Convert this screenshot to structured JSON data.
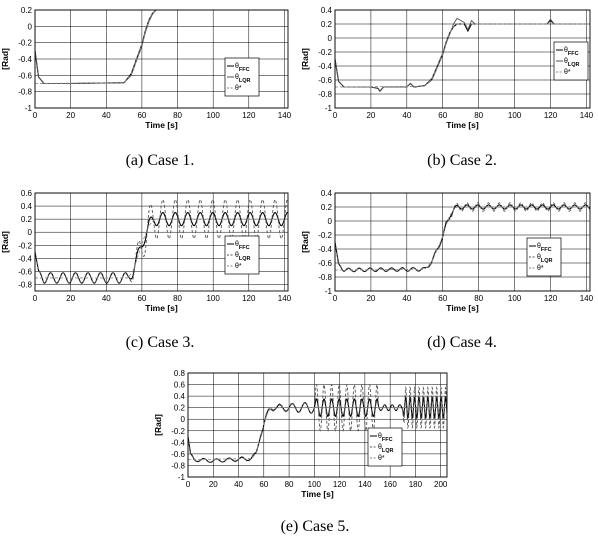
{
  "chart_data": [
    {
      "type": "line",
      "caption": "(a) Case 1.",
      "xlabel": "Time [s]",
      "ylabel": "[Rad]",
      "xlim": [
        0,
        142
      ],
      "ylim": [
        -1,
        0.2
      ],
      "xticks": [
        0,
        20,
        40,
        60,
        80,
        100,
        120,
        140
      ],
      "yticks": [
        -1,
        -0.8,
        -0.6,
        -0.4,
        -0.2,
        0,
        0.2
      ],
      "grid": true,
      "legend_position": "right",
      "legend": [
        "θ_FFC",
        "θ_LQR",
        "θ*"
      ],
      "series": [
        {
          "name": "θ_FFC",
          "style": "solid",
          "x": [
            0,
            2,
            5,
            20,
            50,
            54,
            57,
            60,
            62,
            64,
            66,
            68,
            142
          ],
          "y": [
            -0.3,
            -0.62,
            -0.7,
            -0.7,
            -0.69,
            -0.58,
            -0.4,
            -0.22,
            -0.05,
            0.08,
            0.16,
            0.2,
            0.2
          ]
        },
        {
          "name": "θ_LQR",
          "style": "solid",
          "x": [
            0,
            2,
            5,
            20,
            50,
            54,
            57,
            60,
            62,
            64,
            66,
            68,
            142
          ],
          "y": [
            -0.3,
            -0.62,
            -0.7,
            -0.7,
            -0.69,
            -0.6,
            -0.42,
            -0.24,
            -0.07,
            0.06,
            0.15,
            0.2,
            0.2
          ]
        },
        {
          "name": "θ*",
          "style": "dashed",
          "x": [
            0,
            50,
            54,
            57,
            60,
            62,
            64,
            66,
            68,
            142
          ],
          "y": [
            -0.7,
            -0.69,
            -0.58,
            -0.4,
            -0.22,
            -0.05,
            0.08,
            0.16,
            0.2,
            0.2
          ]
        }
      ]
    },
    {
      "type": "line",
      "caption": "(b) Case 2.",
      "xlabel": "Time [s]",
      "ylabel": "[Rad]",
      "xlim": [
        0,
        142
      ],
      "ylim": [
        -1,
        0.4
      ],
      "xticks": [
        0,
        20,
        40,
        60,
        80,
        100,
        120,
        140
      ],
      "yticks": [
        -1,
        -0.8,
        -0.6,
        -0.4,
        -0.2,
        0,
        0.2,
        0.4
      ],
      "grid": true,
      "legend_position": "right",
      "legend": [
        "θ_FFC",
        "θ_LQR",
        "θ*"
      ],
      "series": [
        {
          "name": "θ_FFC",
          "style": "solid",
          "x": [
            0,
            2,
            5,
            20,
            24,
            25,
            27,
            40,
            42,
            44,
            50,
            54,
            57,
            60,
            62,
            64,
            66,
            68,
            72,
            74,
            76,
            78,
            100,
            118,
            120,
            122,
            142
          ],
          "y": [
            -0.3,
            -0.62,
            -0.7,
            -0.7,
            -0.72,
            -0.76,
            -0.7,
            -0.7,
            -0.65,
            -0.7,
            -0.68,
            -0.58,
            -0.4,
            -0.22,
            -0.05,
            0.08,
            0.16,
            0.2,
            0.2,
            0.1,
            0.2,
            0.2,
            0.2,
            0.2,
            0.25,
            0.2,
            0.2
          ]
        },
        {
          "name": "θ_LQR",
          "style": "solid",
          "x": [
            0,
            2,
            5,
            20,
            24,
            25,
            27,
            40,
            42,
            44,
            50,
            54,
            57,
            60,
            62,
            64,
            66,
            68,
            72,
            74,
            76,
            78,
            100,
            118,
            120,
            122,
            142
          ],
          "y": [
            -0.3,
            -0.62,
            -0.7,
            -0.7,
            -0.72,
            -0.76,
            -0.7,
            -0.7,
            -0.65,
            -0.7,
            -0.68,
            -0.6,
            -0.42,
            -0.24,
            -0.07,
            0.06,
            0.2,
            0.28,
            0.22,
            0.12,
            0.25,
            0.2,
            0.2,
            0.2,
            0.27,
            0.2,
            0.2
          ]
        },
        {
          "name": "θ*",
          "style": "dashed",
          "x": [
            0,
            50,
            54,
            57,
            60,
            62,
            64,
            66,
            68,
            142
          ],
          "y": [
            -0.7,
            -0.69,
            -0.58,
            -0.4,
            -0.22,
            -0.05,
            0.08,
            0.16,
            0.2,
            0.2
          ]
        }
      ]
    },
    {
      "type": "line",
      "caption": "(c) Case 3.",
      "xlabel": "Time [s]",
      "ylabel": "[Rad]",
      "xlim": [
        0,
        142
      ],
      "ylim": [
        -0.9,
        0.6
      ],
      "xticks": [
        0,
        20,
        40,
        60,
        80,
        100,
        120,
        140
      ],
      "yticks": [
        -0.8,
        -0.6,
        -0.4,
        -0.2,
        0,
        0.2,
        0.4,
        0.6
      ],
      "grid": true,
      "legend_position": "right",
      "legend": [
        "θ_FFC",
        "θ_LQR",
        "θ*"
      ],
      "series_note": "oscillating",
      "series": [
        {
          "name": "θ_FFC",
          "style": "solid",
          "mode": "sine",
          "base": {
            "x": [
              0,
              2,
              5,
              52,
              55,
              58,
              61,
              64,
              67,
              142
            ],
            "y": [
              -0.3,
              -0.62,
              -0.7,
              -0.7,
              -0.6,
              -0.35,
              -0.1,
              0.1,
              0.2,
              0.2
            ]
          },
          "amp_x": [
            0,
            5,
            52,
            62,
            142
          ],
          "amp_y": [
            0,
            0.08,
            0.08,
            0.1,
            0.1
          ],
          "period": 7
        },
        {
          "name": "θ_LQR",
          "style": "dashed",
          "mode": "sine",
          "base": {
            "x": [
              0,
              2,
              5,
              52,
              55,
              58,
              61,
              64,
              67,
              142
            ],
            "y": [
              -0.3,
              -0.62,
              -0.7,
              -0.7,
              -0.6,
              -0.35,
              -0.1,
              0.1,
              0.2,
              0.2
            ]
          },
          "amp_x": [
            0,
            5,
            52,
            62,
            142
          ],
          "amp_y": [
            0,
            0.08,
            0.08,
            0.3,
            0.3
          ],
          "period": 7
        },
        {
          "name": "θ*",
          "style": "dashed",
          "x": [
            0,
            52,
            55,
            58,
            61,
            64,
            67,
            142
          ],
          "y": [
            -0.7,
            -0.7,
            -0.6,
            -0.35,
            -0.1,
            0.1,
            0.2,
            0.2
          ]
        }
      ]
    },
    {
      "type": "line",
      "caption": "(d) Case 4.",
      "xlabel": "Time [s]",
      "ylabel": "[Rad]",
      "xlim": [
        0,
        142
      ],
      "ylim": [
        -1,
        0.4
      ],
      "xticks": [
        0,
        20,
        40,
        60,
        80,
        100,
        120,
        140
      ],
      "yticks": [
        -1,
        -0.8,
        -0.6,
        -0.4,
        -0.2,
        0,
        0.2,
        0.4
      ],
      "grid": true,
      "legend_position": "right",
      "legend": [
        "θ_FFC",
        "θ_LQR",
        "θ*"
      ],
      "series": [
        {
          "name": "θ_FFC",
          "style": "solid",
          "mode": "sine",
          "base": {
            "x": [
              0,
              2,
              5,
              50,
              54,
              57,
              60,
              62,
              64,
              66,
              68,
              142
            ],
            "y": [
              -0.3,
              -0.62,
              -0.7,
              -0.69,
              -0.58,
              -0.4,
              -0.22,
              -0.05,
              0.08,
              0.16,
              0.2,
              0.2
            ]
          },
          "amp_x": [
            0,
            5,
            52,
            62,
            142
          ],
          "amp_y": [
            0,
            0.025,
            0.025,
            0.03,
            0.03
          ],
          "period": 6
        },
        {
          "name": "θ_LQR",
          "style": "dashed",
          "mode": "sine",
          "base": {
            "x": [
              0,
              2,
              5,
              50,
              54,
              57,
              60,
              62,
              64,
              66,
              68,
              142
            ],
            "y": [
              -0.3,
              -0.62,
              -0.7,
              -0.69,
              -0.58,
              -0.4,
              -0.22,
              -0.05,
              0.08,
              0.16,
              0.2,
              0.2
            ]
          },
          "amp_x": [
            0,
            5,
            52,
            62,
            142
          ],
          "amp_y": [
            0,
            0.02,
            0.02,
            0.06,
            0.06
          ],
          "period": 6
        },
        {
          "name": "θ*",
          "style": "dashed",
          "x": [
            0,
            50,
            54,
            57,
            60,
            62,
            64,
            66,
            68,
            142
          ],
          "y": [
            -0.7,
            -0.69,
            -0.58,
            -0.4,
            -0.22,
            -0.05,
            0.08,
            0.16,
            0.2,
            0.2
          ]
        }
      ]
    },
    {
      "type": "line",
      "caption": "(e) Case 5.",
      "xlabel": "Time [s]",
      "ylabel": "[Rad]",
      "xlim": [
        0,
        205
      ],
      "ylim": [
        -1,
        0.8
      ],
      "xticks": [
        0,
        20,
        40,
        60,
        80,
        100,
        120,
        140,
        160,
        180,
        200
      ],
      "yticks": [
        -1,
        -0.8,
        -0.6,
        -0.4,
        -0.2,
        0,
        0.2,
        0.4,
        0.6,
        0.8
      ],
      "grid": true,
      "legend_position": "right",
      "legend": [
        "θ_FFC",
        "θ_LQR",
        "θ*"
      ],
      "series": [
        {
          "name": "θ_FFC",
          "style": "solid",
          "mode": "sine",
          "base": {
            "x": [
              0,
              2,
              5,
              20,
              50,
              54,
              57,
              60,
              62,
              64,
              66,
              68,
              205
            ],
            "y": [
              -0.3,
              -0.62,
              -0.7,
              -0.72,
              -0.68,
              -0.6,
              -0.3,
              -0.1,
              0.05,
              0.15,
              0.2,
              0.2,
              0.2
            ]
          },
          "amp_x": [
            0,
            60,
            100,
            101,
            150,
            151,
            170,
            171,
            205
          ],
          "amp_y": [
            0.03,
            0.03,
            0.1,
            0.15,
            0.15,
            0.05,
            0.05,
            0.18,
            0.18
          ],
          "period_x": [
            0,
            100,
            101,
            150,
            170,
            171,
            205
          ],
          "period_y": [
            10,
            10,
            6,
            6,
            6,
            3.5,
            3.5
          ]
        },
        {
          "name": "θ_LQR",
          "style": "dashed",
          "mode": "sine",
          "base": {
            "x": [
              0,
              2,
              5,
              20,
              50,
              54,
              57,
              60,
              62,
              64,
              66,
              68,
              205
            ],
            "y": [
              -0.3,
              -0.62,
              -0.7,
              -0.72,
              -0.68,
              -0.6,
              -0.3,
              -0.1,
              0.05,
              0.15,
              0.2,
              0.2,
              0.2
            ]
          },
          "amp_x": [
            0,
            60,
            100,
            101,
            150,
            151,
            170,
            171,
            205
          ],
          "amp_y": [
            0.02,
            0.05,
            0.1,
            0.4,
            0.4,
            0.05,
            0.05,
            0.35,
            0.35
          ],
          "period_x": [
            0,
            100,
            101,
            150,
            170,
            171,
            205
          ],
          "period_y": [
            10,
            10,
            6,
            6,
            6,
            3.5,
            3.5
          ]
        },
        {
          "name": "θ*",
          "style": "dashed",
          "x": [
            0,
            50,
            54,
            57,
            60,
            62,
            64,
            66,
            68,
            205
          ],
          "y": [
            -0.7,
            -0.68,
            -0.6,
            -0.3,
            -0.1,
            0.05,
            0.15,
            0.2,
            0.2,
            0.2
          ]
        }
      ]
    }
  ]
}
